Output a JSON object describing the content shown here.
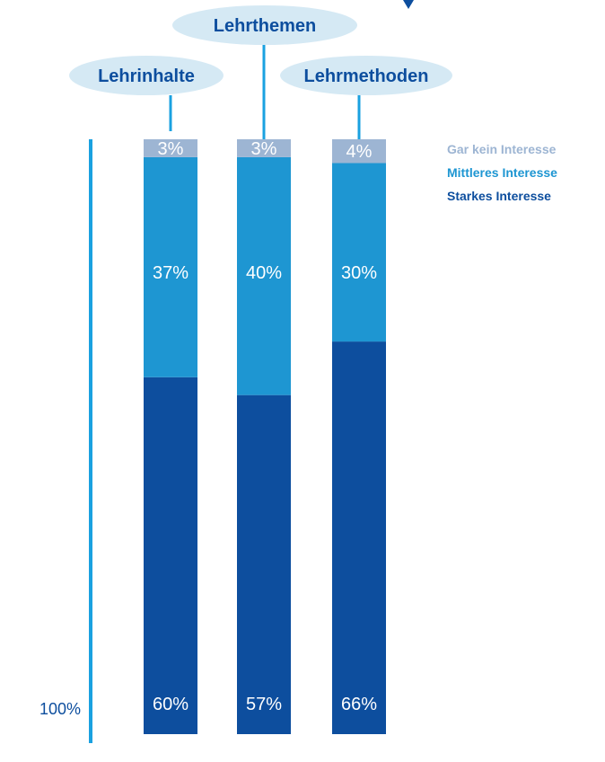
{
  "chart_data": {
    "type": "bar",
    "stacked": true,
    "normalized_to_100": true,
    "categories": [
      "Lehrinhalte",
      "Lehrthemen",
      "Lehrmethoden"
    ],
    "series": [
      {
        "name": "Starkes Interesse",
        "values": [
          60,
          57,
          66
        ],
        "labels": [
          "60%",
          "57%",
          "66%"
        ],
        "color": "#0d4e9e"
      },
      {
        "name": "Mittleres Interesse",
        "values": [
          37,
          40,
          30
        ],
        "labels": [
          "37%",
          "40%",
          "30%"
        ],
        "color": "#1e96d2"
      },
      {
        "name": "Gar kein Interesse",
        "values": [
          3,
          3,
          4
        ],
        "labels": [
          "3%",
          "3%",
          "4%"
        ],
        "color": "#9db5d3"
      }
    ],
    "y_axis_label": "100%",
    "ylim": [
      0,
      100
    ],
    "legend_position": "top-right",
    "legend_order": [
      "Gar kein Interesse",
      "Mittleres Interesse",
      "Starkes Interesse"
    ]
  },
  "colors": {
    "axis": "#1aa1e0",
    "bubble_fill": "#d5e9f4",
    "bubble_text": "#0d4e9e",
    "connector": "#1aa1e0",
    "axis_label": "#0d4e9e",
    "bar_label": "#ffffff"
  },
  "legend": {
    "items": [
      {
        "label": "Gar kein Interesse",
        "color": "#9db5d3"
      },
      {
        "label": "Mittleres Interesse",
        "color": "#1e96d2"
      },
      {
        "label": "Starkes Interesse",
        "color": "#0d4e9e"
      }
    ]
  }
}
